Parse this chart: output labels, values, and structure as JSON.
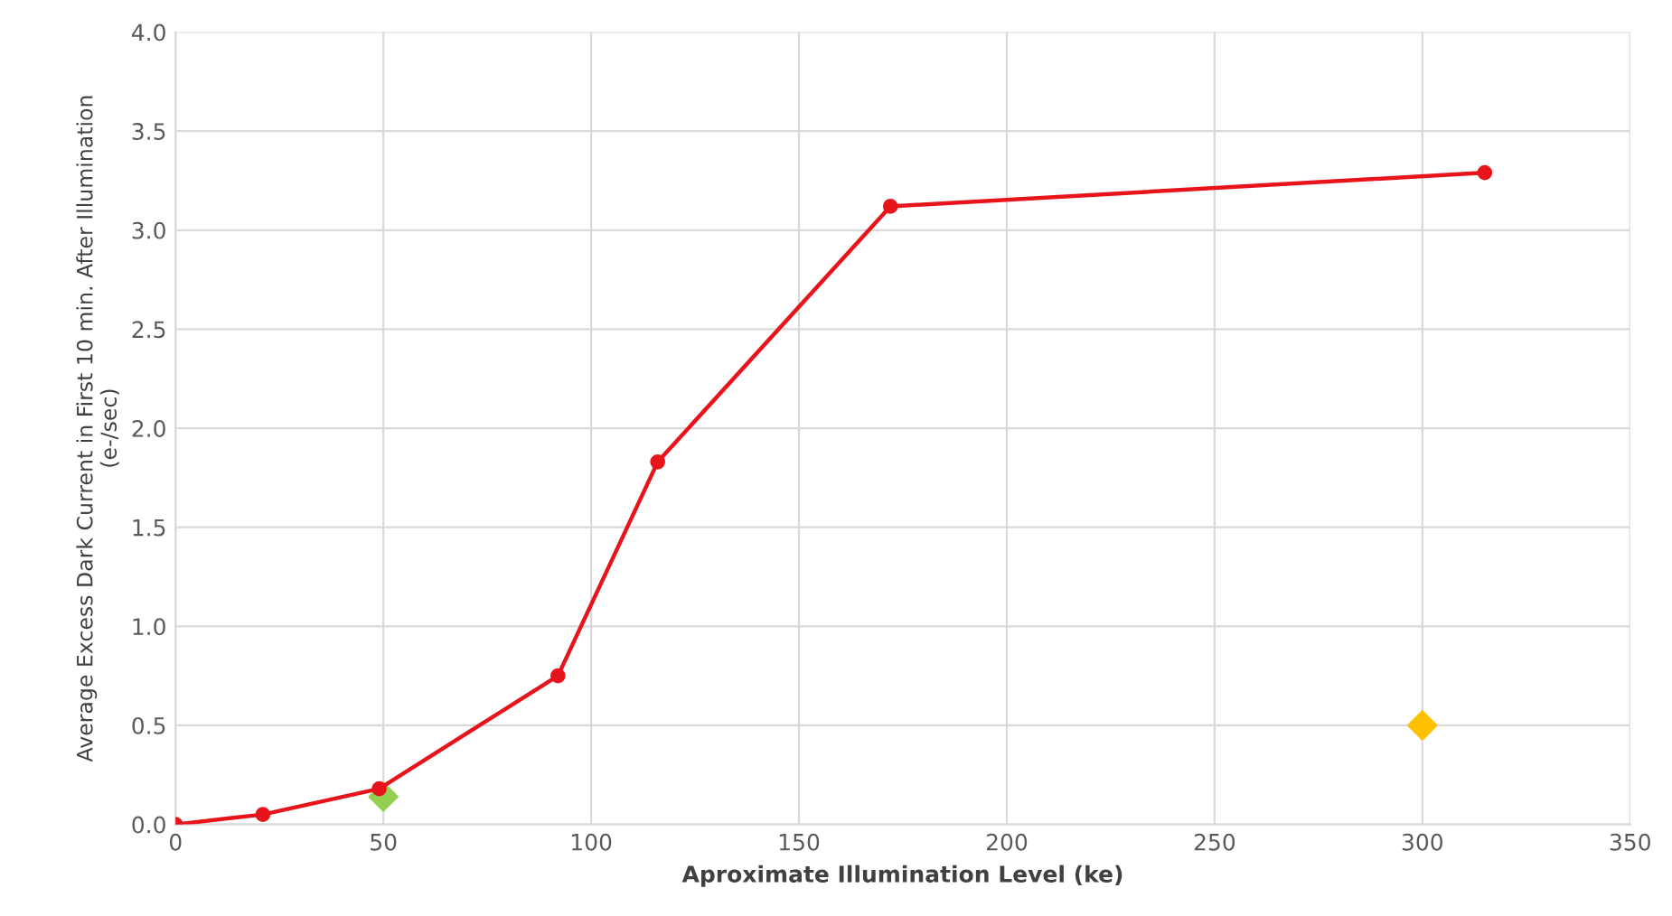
{
  "chart_data": {
    "type": "line",
    "xlabel": "Aproximate Illumination Level (ke)",
    "ylabel": "Average Excess Dark Current in First 10 min. After Illumination\n(e-/sec)",
    "series": [
      {
        "color": "#e8141c",
        "marker": "circle",
        "x": [
          0,
          21,
          49,
          92,
          116,
          172,
          315
        ],
        "values": [
          0.0,
          0.05,
          0.18,
          0.75,
          1.83,
          3.12,
          3.29
        ]
      },
      {
        "type": "scatter",
        "color": "#92d050",
        "marker": "diamond",
        "x": [
          50
        ],
        "values": [
          0.14
        ]
      },
      {
        "type": "scatter",
        "color": "#ffc000",
        "marker": "diamond",
        "x": [
          300
        ],
        "values": [
          0.5
        ]
      }
    ],
    "xlim": [
      0,
      350
    ],
    "xticks": [
      0,
      50,
      100,
      150,
      200,
      250,
      300,
      350
    ],
    "ylim": [
      0,
      4
    ],
    "yticks": [
      {
        "value": 0,
        "label": "0.0"
      },
      {
        "value": 0.5,
        "label": "0.5"
      },
      {
        "value": 1,
        "label": "1.0"
      },
      {
        "value": 1.5,
        "label": "1.5"
      },
      {
        "value": 2,
        "label": "2.0"
      },
      {
        "value": 2.5,
        "label": "2.5"
      },
      {
        "value": 3,
        "label": "3.0"
      },
      {
        "value": 3.5,
        "label": "3.5"
      },
      {
        "value": 4,
        "label": "4.0"
      }
    ],
    "grid": true
  }
}
